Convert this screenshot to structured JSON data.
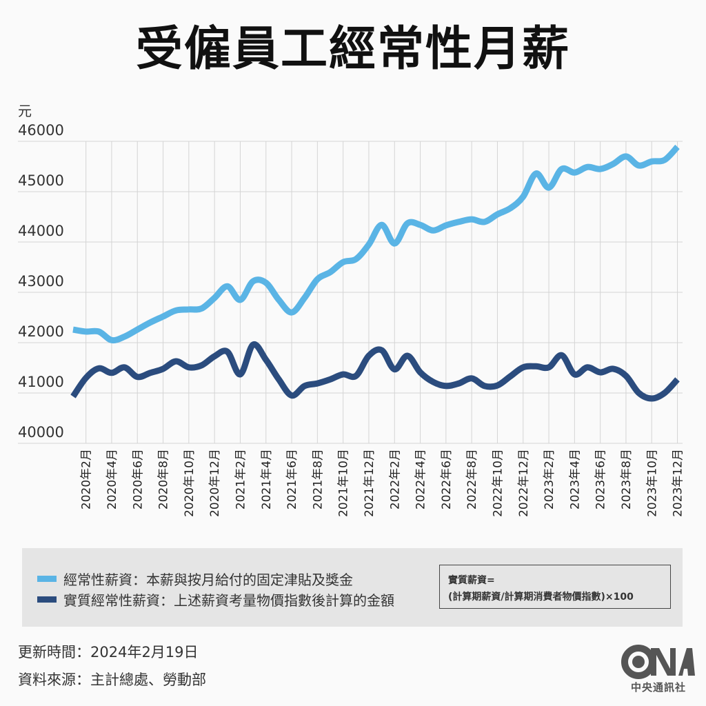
{
  "header": {
    "title": "受僱員工經常性月薪",
    "unit": "元"
  },
  "legend": {
    "items": [
      {
        "label": "經常性薪資：本薪與按月給付的固定津貼及獎金",
        "color": "#5ab4e5"
      },
      {
        "label": "實質經常性薪資：上述薪資考量物價指數後計算的金額",
        "color": "#2b4c7e"
      }
    ],
    "formula_line1": "實質薪資=",
    "formula_line2": "(計算期薪資/計算期消費者物價指數)×100"
  },
  "footer": {
    "updated": "更新時間：2024年2月19日",
    "source": "資料來源：主計總處、勞動部",
    "logo_text": "中央通訊社"
  },
  "chart_data": {
    "type": "line",
    "title": "受僱員工經常性月薪",
    "xlabel": "",
    "ylabel": "元",
    "ylim": [
      40000,
      46000
    ],
    "yticks": [
      40000,
      41000,
      42000,
      43000,
      44000,
      45000,
      46000
    ],
    "grid": true,
    "legend_position": "bottom",
    "x": [
      "2020年1月",
      "2020年2月",
      "2020年3月",
      "2020年4月",
      "2020年5月",
      "2020年6月",
      "2020年7月",
      "2020年8月",
      "2020年9月",
      "2020年10月",
      "2020年11月",
      "2020年12月",
      "2021年1月",
      "2021年2月",
      "2021年3月",
      "2021年4月",
      "2021年5月",
      "2021年6月",
      "2021年7月",
      "2021年8月",
      "2021年9月",
      "2021年10月",
      "2021年11月",
      "2021年12月",
      "2022年1月",
      "2022年2月",
      "2022年3月",
      "2022年4月",
      "2022年5月",
      "2022年6月",
      "2022年7月",
      "2022年8月",
      "2022年9月",
      "2022年10月",
      "2022年11月",
      "2022年12月",
      "2023年1月",
      "2023年2月",
      "2023年3月",
      "2023年4月",
      "2023年5月",
      "2023年6月",
      "2023年7月",
      "2023年8月",
      "2023年9月",
      "2023年10月",
      "2023年11月",
      "2023年12月"
    ],
    "xtick_labels": [
      "2020年2月",
      "2020年4月",
      "2020年6月",
      "2020年8月",
      "2020年10月",
      "2020年12月",
      "2021年2月",
      "2021年4月",
      "2021年6月",
      "2021年8月",
      "2021年10月",
      "2021年12月",
      "2022年2月",
      "2022年4月",
      "2022年6月",
      "2022年8月",
      "2022年10月",
      "2022年12月",
      "2023年2月",
      "2023年4月",
      "2023年6月",
      "2023年8月",
      "2023年10月",
      "2023年12月"
    ],
    "series": [
      {
        "name": "經常性薪資",
        "color": "#5ab4e5",
        "values": [
          42260,
          42220,
          42220,
          42050,
          42120,
          42260,
          42400,
          42520,
          42640,
          42660,
          42680,
          42890,
          43120,
          42850,
          43220,
          43190,
          42850,
          42600,
          42890,
          43260,
          43400,
          43600,
          43660,
          43950,
          44340,
          43970,
          44370,
          44340,
          44230,
          44330,
          44400,
          44450,
          44400,
          44550,
          44670,
          44900,
          45360,
          45080,
          45450,
          45380,
          45490,
          45450,
          45550,
          45700,
          45520,
          45600,
          45630,
          45890
        ]
      },
      {
        "name": "實質經常性薪資",
        "color": "#2b4c7e",
        "values": [
          40930,
          41300,
          41490,
          41400,
          41510,
          41320,
          41400,
          41480,
          41630,
          41510,
          41550,
          41730,
          41820,
          41370,
          41960,
          41660,
          41270,
          40950,
          41140,
          41190,
          41270,
          41370,
          41340,
          41740,
          41850,
          41470,
          41740,
          41410,
          41220,
          41140,
          41190,
          41290,
          41140,
          41150,
          41330,
          41510,
          41530,
          41510,
          41750,
          41370,
          41510,
          41410,
          41480,
          41340,
          41000,
          40890,
          41000,
          41270
        ]
      }
    ]
  }
}
